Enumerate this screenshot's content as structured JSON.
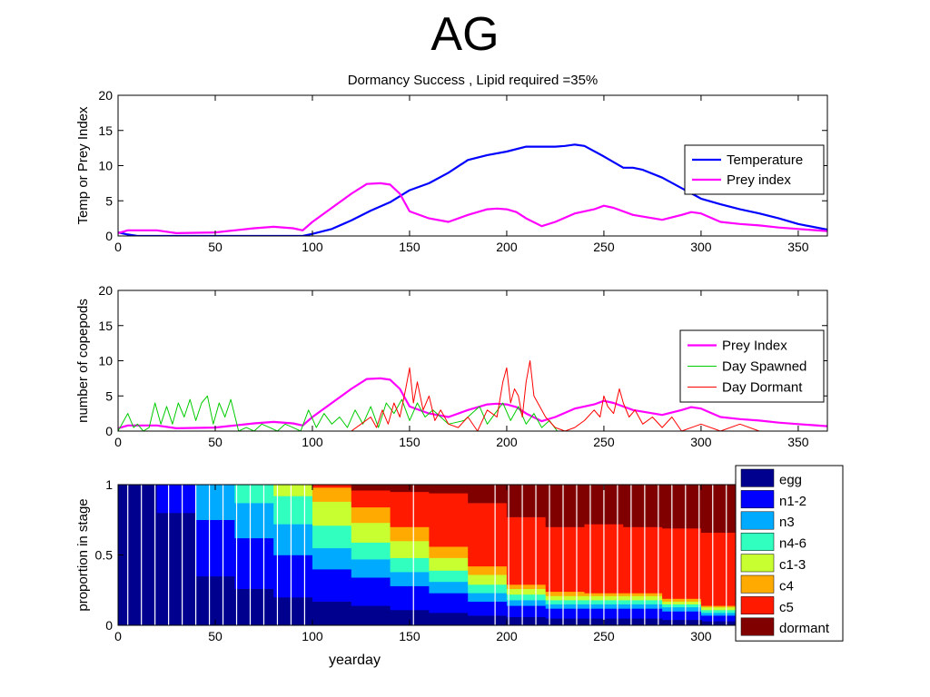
{
  "page_title": "AG",
  "colors": {
    "temperature": "#0000ff",
    "prey": "#ff00ff",
    "spawned": "#00cc00",
    "dormant_line": "#ff0000",
    "stages": [
      "#00008f",
      "#0000ff",
      "#00aaff",
      "#30ffc0",
      "#c8ff30",
      "#ffaa00",
      "#ff1a00",
      "#800000"
    ]
  },
  "chart_data": [
    {
      "type": "line",
      "title": "Dormancy Success , Lipid required =35%",
      "xlabel": "",
      "ylabel": "Temp or Prey Index",
      "xlim": [
        0,
        365
      ],
      "ylim": [
        0,
        20
      ],
      "xticks": [
        "0",
        "50",
        "100",
        "150",
        "200",
        "250",
        "300",
        "350"
      ],
      "yticks": [
        "0",
        "5",
        "10",
        "15",
        "20"
      ],
      "grid": false,
      "legend_position": "right",
      "series": [
        {
          "name": "Temperature",
          "color": "#0000ff",
          "x": [
            0,
            5,
            10,
            15,
            30,
            50,
            70,
            90,
            95,
            100,
            110,
            120,
            130,
            140,
            150,
            160,
            170,
            180,
            190,
            200,
            210,
            220,
            225,
            230,
            235,
            240,
            250,
            260,
            265,
            270,
            280,
            290,
            300,
            310,
            320,
            330,
            340,
            350,
            365
          ],
          "y": [
            0.5,
            0.2,
            0,
            0,
            0,
            0,
            0,
            0,
            0,
            0.3,
            1,
            2.2,
            3.6,
            4.8,
            6.5,
            7.5,
            9,
            10.8,
            11.5,
            12,
            12.7,
            12.7,
            12.7,
            12.8,
            13,
            12.8,
            11.3,
            9.7,
            9.7,
            9.4,
            8.3,
            6.8,
            5.3,
            4.5,
            3.8,
            3.2,
            2.5,
            1.7,
            0.9
          ]
        },
        {
          "name": "Prey index",
          "color": "#ff00ff",
          "x": [
            0,
            5,
            20,
            30,
            50,
            60,
            70,
            80,
            90,
            95,
            100,
            110,
            120,
            128,
            135,
            140,
            145,
            150,
            160,
            170,
            180,
            190,
            195,
            200,
            205,
            210,
            218,
            225,
            235,
            245,
            250,
            255,
            265,
            280,
            290,
            295,
            300,
            310,
            320,
            330,
            340,
            350,
            365
          ],
          "y": [
            0.4,
            0.8,
            0.8,
            0.4,
            0.5,
            0.8,
            1.1,
            1.3,
            1.1,
            0.8,
            2,
            4,
            6,
            7.4,
            7.5,
            7.3,
            6,
            3.5,
            2.5,
            2,
            3,
            3.8,
            3.9,
            3.8,
            3.4,
            2.5,
            1.4,
            2,
            3.2,
            3.8,
            4.3,
            4,
            3,
            2.3,
            3,
            3.4,
            3.2,
            2,
            1.7,
            1.5,
            1.2,
            1,
            0.7
          ]
        }
      ]
    },
    {
      "type": "line",
      "title": "",
      "xlabel": "",
      "ylabel": "number of copepods",
      "xlim": [
        0,
        365
      ],
      "ylim": [
        0,
        20
      ],
      "xticks": [
        "0",
        "50",
        "100",
        "150",
        "200",
        "250",
        "300",
        "350"
      ],
      "yticks": [
        "0",
        "5",
        "10",
        "15",
        "20"
      ],
      "grid": false,
      "legend_position": "right",
      "series": [
        {
          "name": "Prey Index",
          "color": "#ff00ff",
          "x": [
            0,
            5,
            20,
            30,
            50,
            60,
            70,
            80,
            90,
            95,
            100,
            110,
            120,
            128,
            135,
            140,
            145,
            150,
            160,
            170,
            180,
            190,
            195,
            200,
            205,
            210,
            218,
            225,
            235,
            245,
            250,
            255,
            265,
            280,
            290,
            295,
            300,
            310,
            320,
            330,
            340,
            350,
            365
          ],
          "y": [
            0.4,
            0.8,
            0.8,
            0.4,
            0.5,
            0.8,
            1.1,
            1.3,
            1.1,
            0.8,
            2,
            4,
            6,
            7.4,
            7.5,
            7.3,
            6,
            3.5,
            2.5,
            2,
            3,
            3.8,
            3.9,
            3.8,
            3.4,
            2.5,
            1.4,
            2,
            3.2,
            3.8,
            4.3,
            4,
            3,
            2.3,
            3,
            3.4,
            3.2,
            2,
            1.7,
            1.5,
            1.2,
            1,
            0.7
          ]
        },
        {
          "name": "Day Spawned",
          "color": "#00cc00",
          "x": [
            0,
            3,
            5,
            8,
            10,
            13,
            16,
            19,
            22,
            25,
            28,
            31,
            34,
            37,
            40,
            43,
            46,
            49,
            52,
            55,
            58,
            62,
            66,
            70,
            74,
            78,
            82,
            86,
            90,
            94,
            98,
            102,
            106,
            110,
            114,
            118,
            122,
            126,
            130,
            134,
            138,
            142,
            146,
            150,
            154,
            158,
            162,
            170,
            178,
            186,
            190,
            194,
            198,
            202,
            206,
            210,
            214,
            218,
            222,
            226
          ],
          "y": [
            0,
            1.5,
            2.5,
            0.5,
            1,
            0,
            0.5,
            4,
            1,
            3.5,
            1,
            4,
            2,
            4.5,
            1.5,
            4,
            5,
            1,
            4,
            2,
            4.5,
            0,
            0.5,
            0,
            1,
            0.5,
            0,
            1,
            0.5,
            0,
            3,
            0.5,
            2.5,
            1,
            2,
            0.5,
            3,
            1,
            3.5,
            0.5,
            4,
            2.5,
            4.5,
            1.5,
            4,
            2,
            3,
            1,
            1.5,
            3.5,
            1,
            2.5,
            4,
            1.5,
            3.5,
            1,
            2.5,
            0.5,
            1.5,
            0
          ]
        },
        {
          "name": "Day Dormant",
          "color": "#ff0000",
          "x": [
            120,
            125,
            130,
            133,
            136,
            139,
            142,
            145,
            148,
            150,
            152,
            154,
            157,
            160,
            163,
            166,
            170,
            175,
            180,
            185,
            190,
            195,
            198,
            200,
            202,
            204,
            206,
            208,
            210,
            212,
            214,
            217,
            220,
            225,
            230,
            235,
            240,
            245,
            248,
            250,
            252,
            255,
            258,
            260,
            263,
            266,
            270,
            275,
            280,
            285,
            290,
            300,
            310,
            320,
            330
          ],
          "y": [
            0,
            1,
            2,
            0.5,
            3,
            1,
            4,
            2,
            6,
            9,
            4,
            7,
            3,
            5,
            1.5,
            3,
            1,
            0.5,
            2,
            0,
            3,
            2,
            7,
            9,
            4,
            6,
            5,
            2,
            7,
            10,
            5,
            3.5,
            2,
            0.5,
            0,
            0.5,
            1.5,
            3,
            2,
            5,
            3.5,
            2.5,
            6,
            4,
            2,
            3,
            1,
            2,
            0.5,
            2,
            0,
            1,
            0,
            1,
            0
          ]
        }
      ]
    },
    {
      "type": "area",
      "title": "",
      "xlabel": "yearday",
      "ylabel": "proportion in stage",
      "xlim": [
        0,
        365
      ],
      "ylim": [
        0,
        1
      ],
      "xticks": [
        "0",
        "50",
        "100",
        "150",
        "200",
        "250",
        "300",
        "350"
      ],
      "yticks": [
        "0",
        "0.5",
        "1"
      ],
      "grid": false,
      "legend_position": "right",
      "stacked": true,
      "categories": [
        "egg",
        "n1-2",
        "n3",
        "n4-6",
        "c1-3",
        "c4",
        "c5",
        "dormant"
      ],
      "x": [
        0,
        20,
        40,
        60,
        80,
        100,
        120,
        140,
        160,
        180,
        200,
        220,
        240,
        260,
        280,
        300,
        320,
        340
      ],
      "series": [
        {
          "name": "egg",
          "values": [
            1.0,
            0.8,
            0.35,
            0.26,
            0.2,
            0.17,
            0.14,
            0.11,
            0.09,
            0.07,
            0.06,
            0.05,
            0.05,
            0.05,
            0.04,
            0.03,
            0.01,
            0.0
          ]
        },
        {
          "name": "n1-2",
          "values": [
            0.0,
            0.2,
            0.4,
            0.36,
            0.3,
            0.23,
            0.2,
            0.17,
            0.14,
            0.1,
            0.08,
            0.07,
            0.07,
            0.07,
            0.06,
            0.04,
            0.02,
            0.0
          ]
        },
        {
          "name": "n3",
          "values": [
            0.0,
            0.0,
            0.25,
            0.25,
            0.22,
            0.15,
            0.13,
            0.1,
            0.08,
            0.06,
            0.04,
            0.03,
            0.03,
            0.03,
            0.03,
            0.02,
            0.01,
            0.0
          ]
        },
        {
          "name": "n4-6",
          "values": [
            0.0,
            0.0,
            0.0,
            0.13,
            0.2,
            0.16,
            0.12,
            0.1,
            0.08,
            0.06,
            0.04,
            0.03,
            0.03,
            0.03,
            0.02,
            0.02,
            0.01,
            0.0
          ]
        },
        {
          "name": "c1-3",
          "values": [
            0.0,
            0.0,
            0.0,
            0.0,
            0.08,
            0.17,
            0.14,
            0.12,
            0.09,
            0.07,
            0.04,
            0.03,
            0.03,
            0.03,
            0.02,
            0.02,
            0.01,
            0.0
          ]
        },
        {
          "name": "c4",
          "values": [
            0.0,
            0.0,
            0.0,
            0.0,
            0.0,
            0.1,
            0.11,
            0.1,
            0.08,
            0.06,
            0.03,
            0.03,
            0.02,
            0.02,
            0.02,
            0.01,
            0.01,
            0.0
          ]
        },
        {
          "name": "c5",
          "values": [
            0.0,
            0.0,
            0.0,
            0.0,
            0.0,
            0.02,
            0.12,
            0.25,
            0.38,
            0.45,
            0.48,
            0.46,
            0.49,
            0.47,
            0.5,
            0.52,
            0.55,
            0.62
          ]
        },
        {
          "name": "dormant",
          "values": [
            0.0,
            0.0,
            0.0,
            0.0,
            0.0,
            0.0,
            0.04,
            0.05,
            0.06,
            0.13,
            0.23,
            0.3,
            0.28,
            0.3,
            0.31,
            0.34,
            0.38,
            0.38
          ]
        }
      ]
    }
  ]
}
